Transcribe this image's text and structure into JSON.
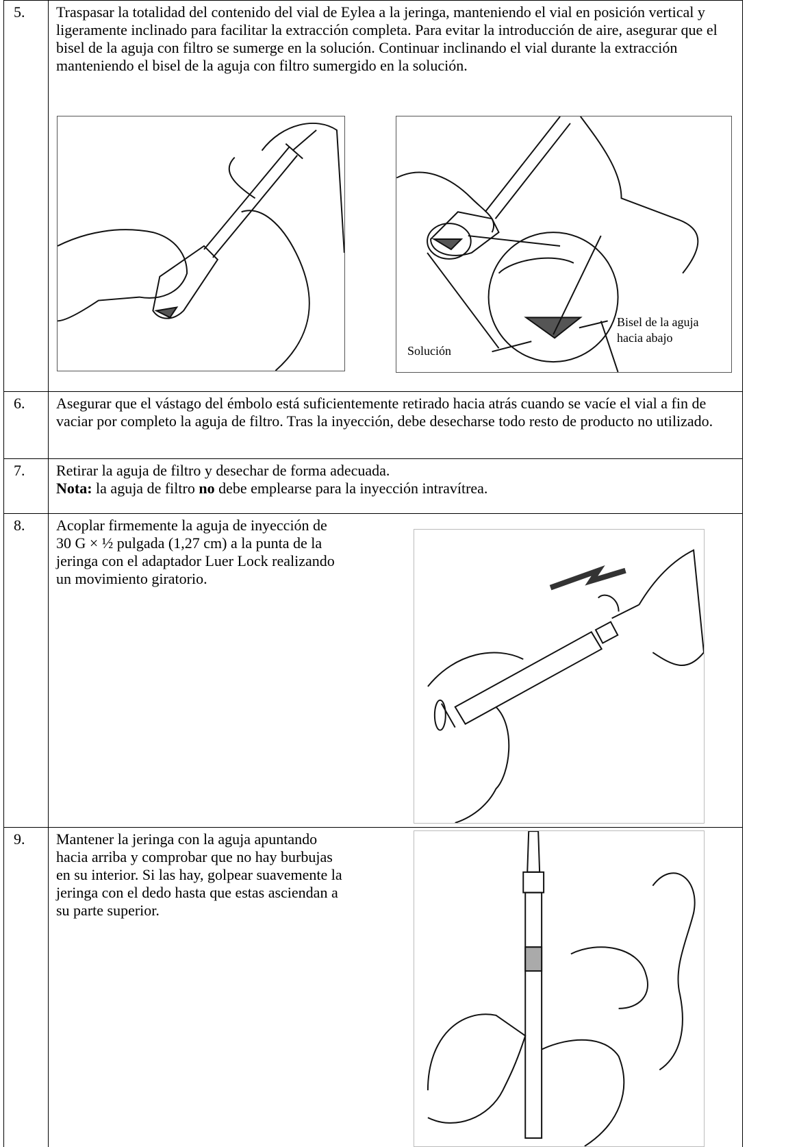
{
  "steps": [
    {
      "number": "5.",
      "text": "Traspasar la totalidad del contenido del vial de Eylea a la jeringa, manteniendo el vial en posición vertical y ligeramente inclinado para facilitar la extracción completa. Para evitar la introducción de aire, asegurar que el bisel de la aguja con filtro se sumerge en la solución. Continuar inclinando el vial durante la extracción manteniendo el bisel de la aguja con filtro sumergido en la solución."
    },
    {
      "number": "6.",
      "text": "Asegurar que el vástago del émbolo está suficientemente retirado hacia atrás cuando se vacíe el vial a fin de vaciar por completo la aguja de filtro. Tras la inyección, debe desecharse todo resto de producto no utilizado."
    },
    {
      "number": "7.",
      "text": "Retirar la aguja de filtro y desechar de forma adecuada.",
      "note_label": "Nota:",
      "note_text_1": "la aguja de filtro",
      "note_emphasis": "no",
      "note_text_2": "debe emplearse para la inyección intravítrea."
    },
    {
      "number": "8.",
      "text": "Acoplar firmemente la aguja de inyección de 30 G × ½ pulgada (1,27 cm) a la punta de la jeringa con el adaptador Luer Lock realizando un movimiento giratorio."
    },
    {
      "number": "9.",
      "text": "Mantener la jeringa con la aguja apuntando hacia arriba y comprobar que no hay burbujas en su interior. Si las hay, golpear suavemente la jeringa con el dedo hasta que estas asciendan a su parte superior."
    }
  ],
  "figure_labels": {
    "solution": "Solución",
    "bevel": [
      "Bisel de la aguja",
      "hacia abajo"
    ]
  }
}
